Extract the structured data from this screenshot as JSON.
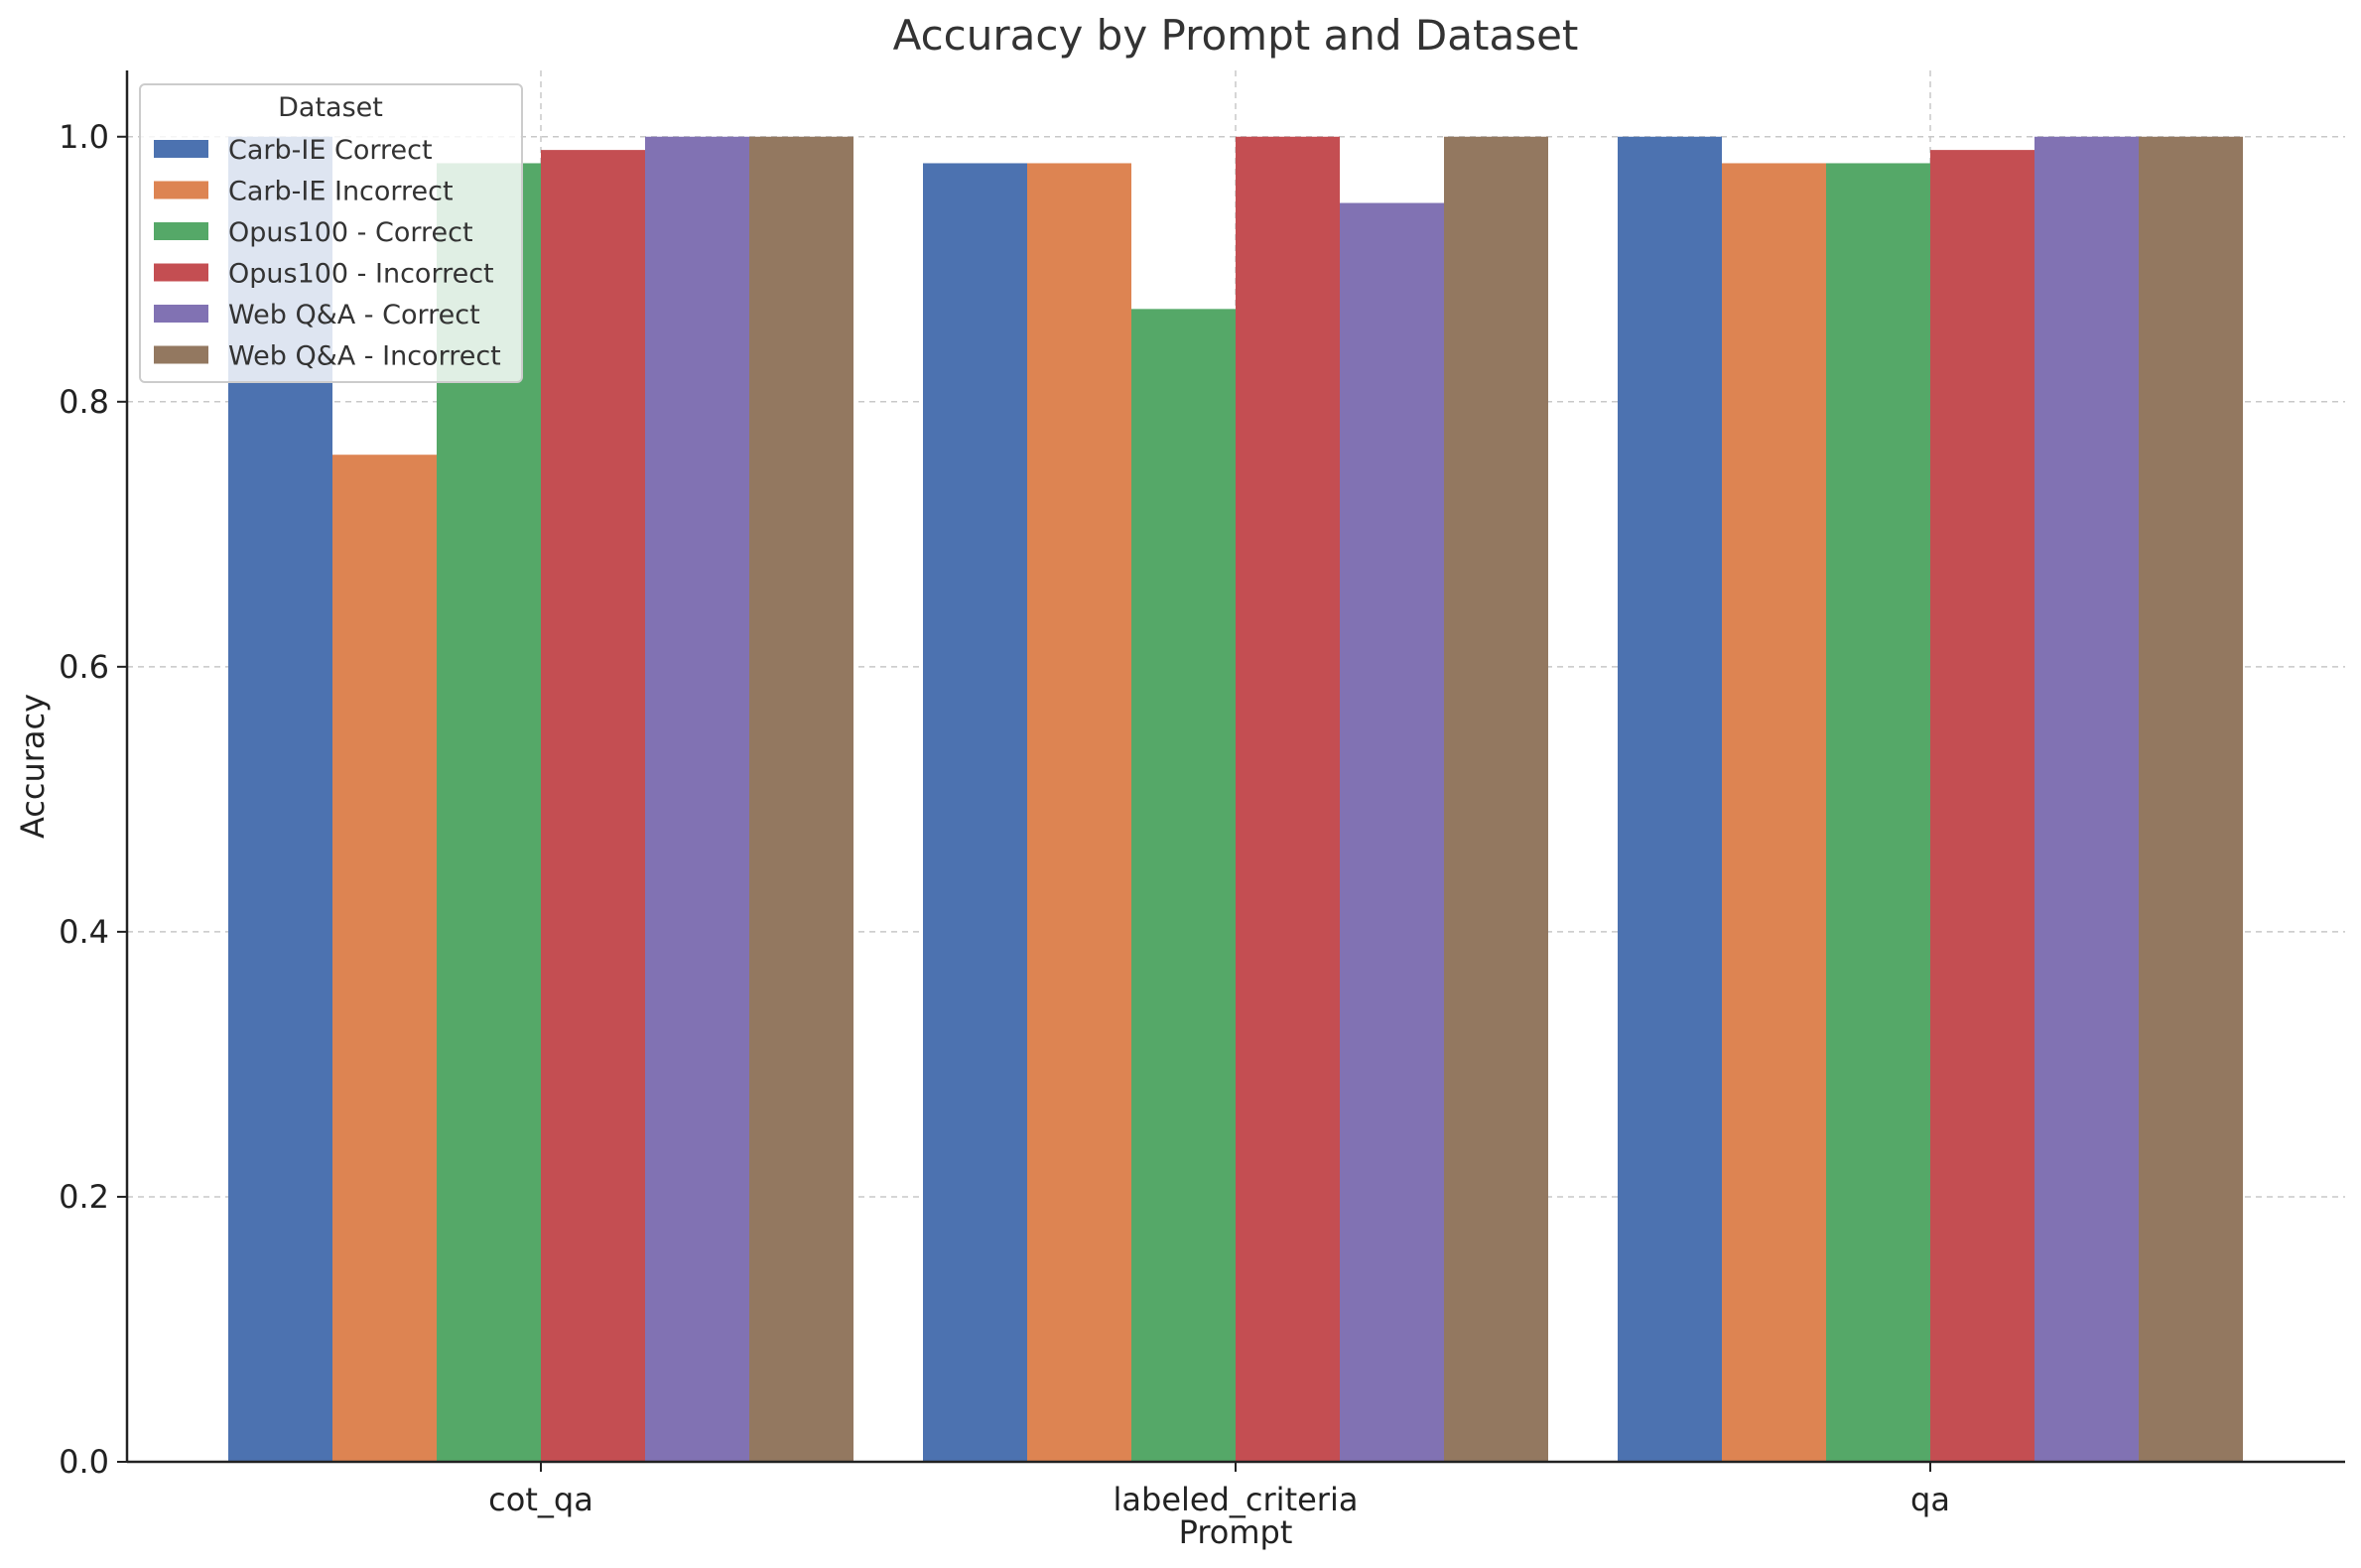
{
  "chart_data": {
    "type": "bar",
    "title": "Accuracy by Prompt and Dataset",
    "xlabel": "Prompt",
    "ylabel": "Accuracy",
    "categories": [
      "cot_qa",
      "labeled_criteria",
      "qa"
    ],
    "ylim": [
      0,
      1.05
    ],
    "yticks": [
      "0.0",
      "0.2",
      "0.4",
      "0.6",
      "0.8",
      "1.0"
    ],
    "grid": true,
    "legend": {
      "title": "Dataset",
      "placement": "top-left"
    },
    "series": [
      {
        "name": "Carb-IE Correct",
        "color": "#4c72b0",
        "values": [
          1.0,
          0.98,
          1.0
        ]
      },
      {
        "name": "Carb-IE Incorrect",
        "color": "#dd8452",
        "values": [
          0.76,
          0.98,
          0.98
        ]
      },
      {
        "name": "Opus100 - Correct",
        "color": "#55a868",
        "values": [
          0.98,
          0.87,
          0.98
        ]
      },
      {
        "name": "Opus100 - Incorrect",
        "color": "#c44e52",
        "values": [
          0.99,
          1.0,
          0.99
        ]
      },
      {
        "name": "Web Q&A - Correct",
        "color": "#8172b3",
        "values": [
          1.0,
          0.95,
          1.0
        ]
      },
      {
        "name": "Web Q&A - Incorrect",
        "color": "#937860",
        "values": [
          1.0,
          1.0,
          1.0
        ]
      }
    ]
  }
}
